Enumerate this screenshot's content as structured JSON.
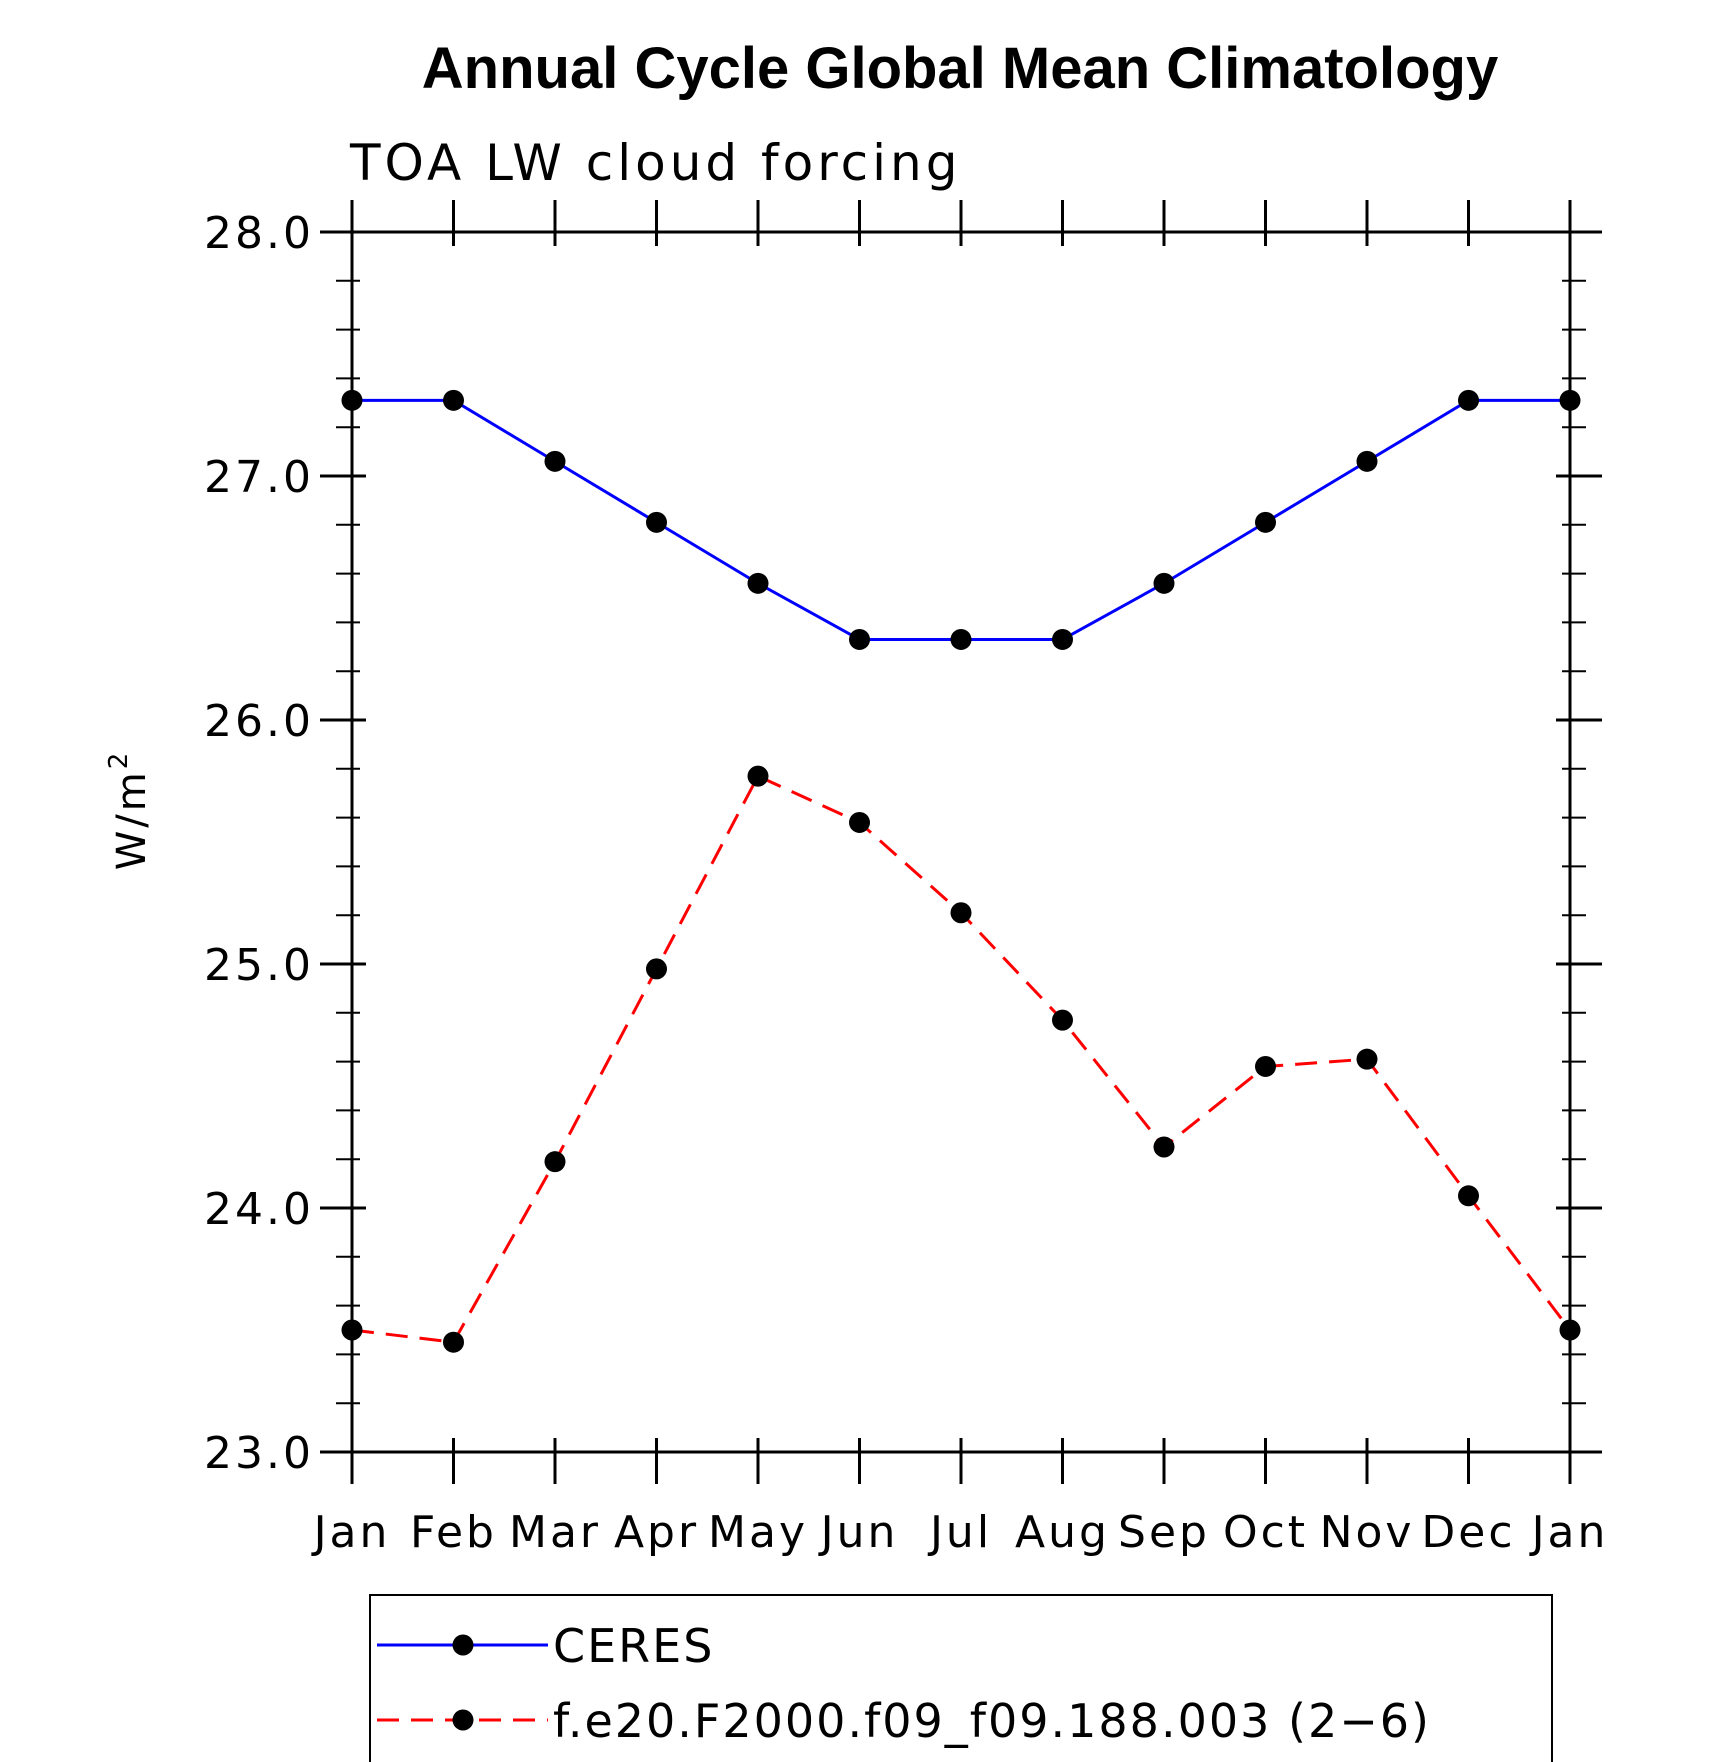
{
  "chart_data": {
    "type": "line",
    "title": "Annual Cycle Global Mean Climatology",
    "subtitle": "TOA LW cloud forcing",
    "ylabel_main": "W/m",
    "ylabel_sup": "2",
    "xlabel": "",
    "categories": [
      "Jan",
      "Feb",
      "Mar",
      "Apr",
      "May",
      "Jun",
      "Jul",
      "Aug",
      "Sep",
      "Oct",
      "Nov",
      "Dec",
      "Jan"
    ],
    "ylim": [
      23.0,
      28.0
    ],
    "yticks": [
      23.0,
      24.0,
      25.0,
      26.0,
      27.0,
      28.0
    ],
    "ytick_labels": [
      "23.0",
      "24.0",
      "25.0",
      "26.0",
      "27.0",
      "28.0"
    ],
    "y_minor_step": 0.2,
    "series": [
      {
        "name": "CERES",
        "color": "#0000ff",
        "dash": "solid",
        "values": [
          27.31,
          27.31,
          27.06,
          26.81,
          26.56,
          26.33,
          26.33,
          26.33,
          26.56,
          26.81,
          27.06,
          27.31,
          27.31
        ]
      },
      {
        "name": "f.e20.F2000.f09_f09.188.003 (2−6)",
        "color": "#ff0000",
        "dash": "dashed",
        "values": [
          23.5,
          23.45,
          24.19,
          24.98,
          25.77,
          25.58,
          25.21,
          24.77,
          24.25,
          24.58,
          24.61,
          24.05,
          23.5
        ]
      }
    ],
    "marker_color": "#000000",
    "legend_position": "bottom"
  }
}
